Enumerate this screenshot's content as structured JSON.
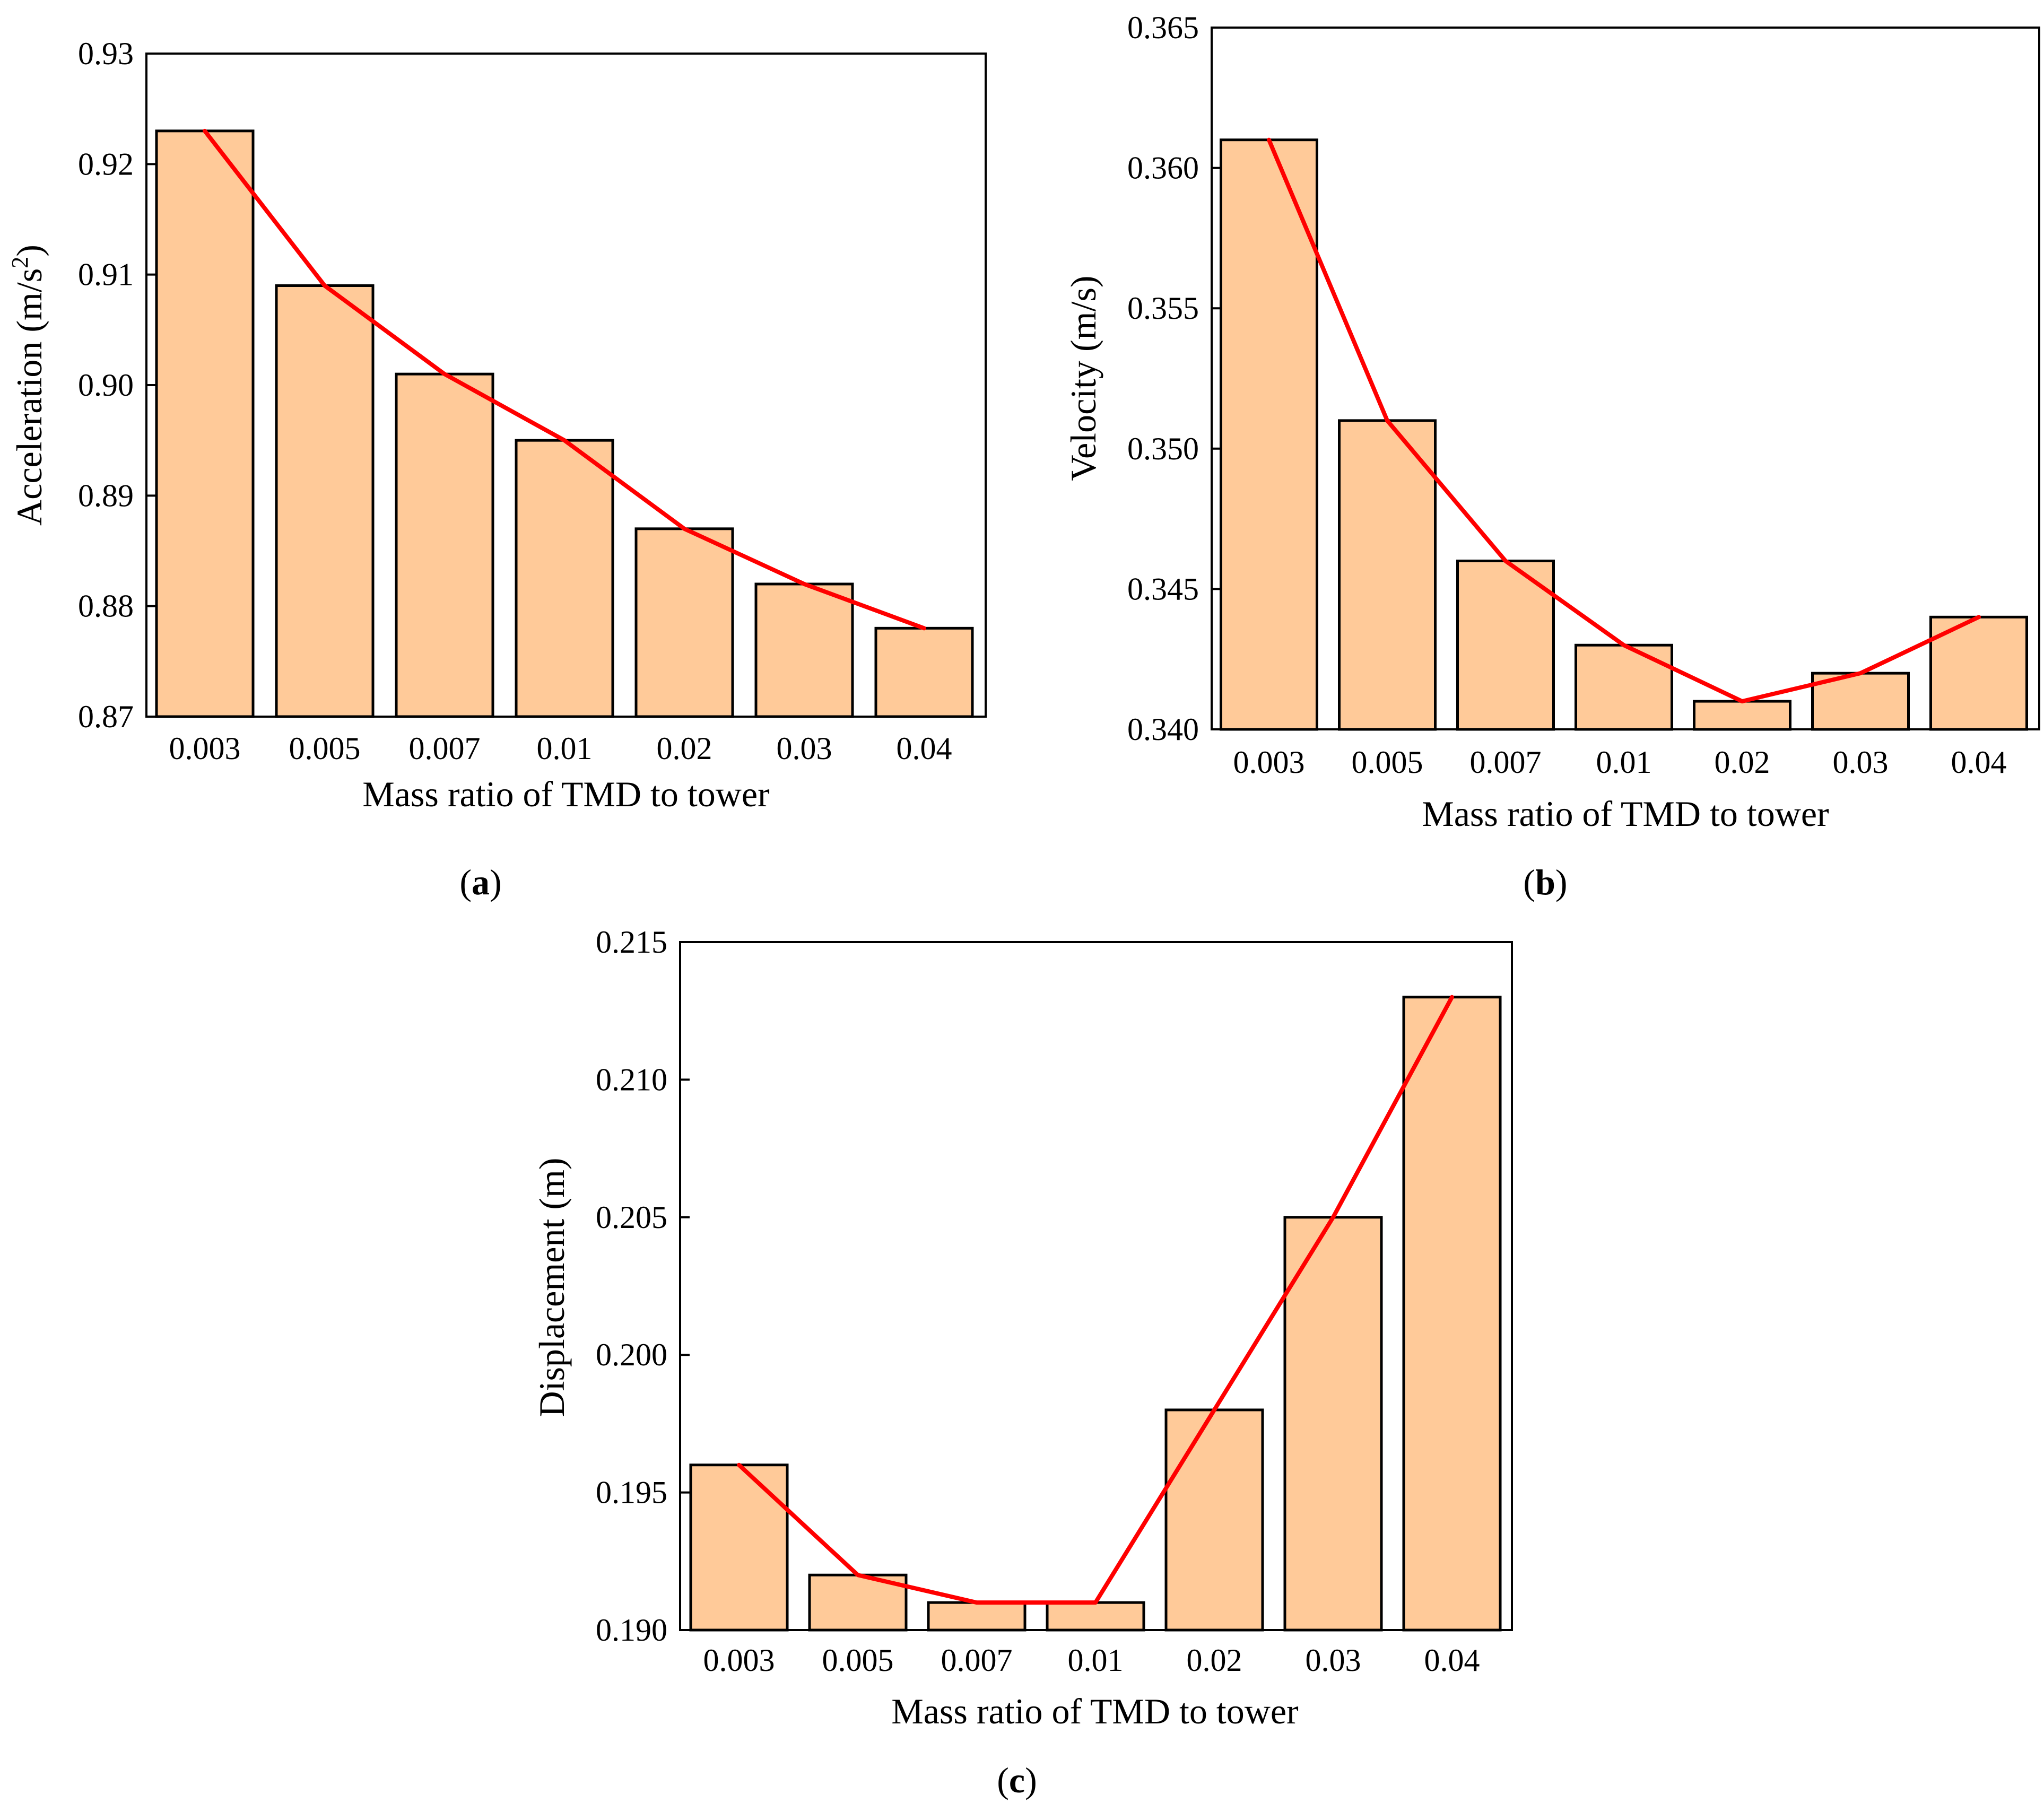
{
  "colors": {
    "bar_fill": "#FFCA99",
    "bar_edge": "#000000",
    "trend_line": "#FF0000"
  },
  "chart_data": [
    {
      "id": "a",
      "type": "bar",
      "panel_label": "a",
      "title": "",
      "categories": [
        "0.003",
        "0.005",
        "0.007",
        "0.01",
        "0.02",
        "0.03",
        "0.04"
      ],
      "values": [
        0.923,
        0.909,
        0.901,
        0.895,
        0.887,
        0.882,
        0.878
      ],
      "overlay_line": true,
      "xlabel": "Mass ratio of TMD to tower",
      "ylabel": "Acceleration (m/s",
      "ylabel_sup": "2",
      "ylabel_end": ")",
      "ylim": [
        0.87,
        0.93
      ],
      "yticks": [
        "0.87",
        "0.88",
        "0.89",
        "0.90",
        "0.91",
        "0.92",
        "0.93"
      ]
    },
    {
      "id": "b",
      "type": "bar",
      "panel_label": "b",
      "title": "",
      "categories": [
        "0.003",
        "0.005",
        "0.007",
        "0.01",
        "0.02",
        "0.03",
        "0.04"
      ],
      "values": [
        0.361,
        0.351,
        0.346,
        0.343,
        0.341,
        0.342,
        0.344
      ],
      "overlay_line": true,
      "xlabel": "Mass ratio of TMD to tower",
      "ylabel": "Velocity (m/s)",
      "ylim": [
        0.34,
        0.365
      ],
      "yticks": [
        "0.340",
        "0.345",
        "0.350",
        "0.355",
        "0.360",
        "0.365"
      ]
    },
    {
      "id": "c",
      "type": "bar",
      "panel_label": "c",
      "title": "",
      "categories": [
        "0.003",
        "0.005",
        "0.007",
        "0.01",
        "0.02",
        "0.03",
        "0.04"
      ],
      "values": [
        0.196,
        0.192,
        0.191,
        0.191,
        0.198,
        0.205,
        0.213
      ],
      "overlay_line": true,
      "xlabel": "Mass ratio of TMD to tower",
      "ylabel": "Displacement (m)",
      "ylim": [
        0.19,
        0.215
      ],
      "yticks": [
        "0.190",
        "0.195",
        "0.200",
        "0.205",
        "0.210",
        "0.215"
      ]
    }
  ]
}
